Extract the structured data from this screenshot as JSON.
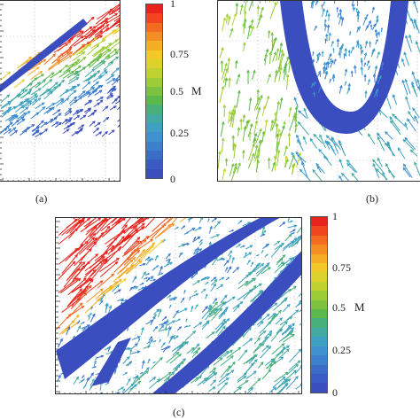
{
  "figure": {
    "panels": [
      {
        "id": "a",
        "label": "(a)"
      },
      {
        "id": "b",
        "label": "(b)"
      },
      {
        "id": "c",
        "label": "(c)"
      }
    ],
    "colorbar": {
      "variable": "M",
      "ticks": [
        "1",
        "0.75",
        "0.5",
        "0.25",
        "0"
      ],
      "colors": [
        "#e8221c",
        "#f0451f",
        "#f46a1f",
        "#f58e22",
        "#f4ad25",
        "#f2c929",
        "#dcd12d",
        "#bfd22f",
        "#9ccc36",
        "#7cc23f",
        "#5bb84b",
        "#48b07a",
        "#42a9a3",
        "#3ea1c2",
        "#3d92cf",
        "#3b7fcd",
        "#3a6cc8",
        "#3a5bc3",
        "#3a4ebf"
      ]
    }
  }
}
